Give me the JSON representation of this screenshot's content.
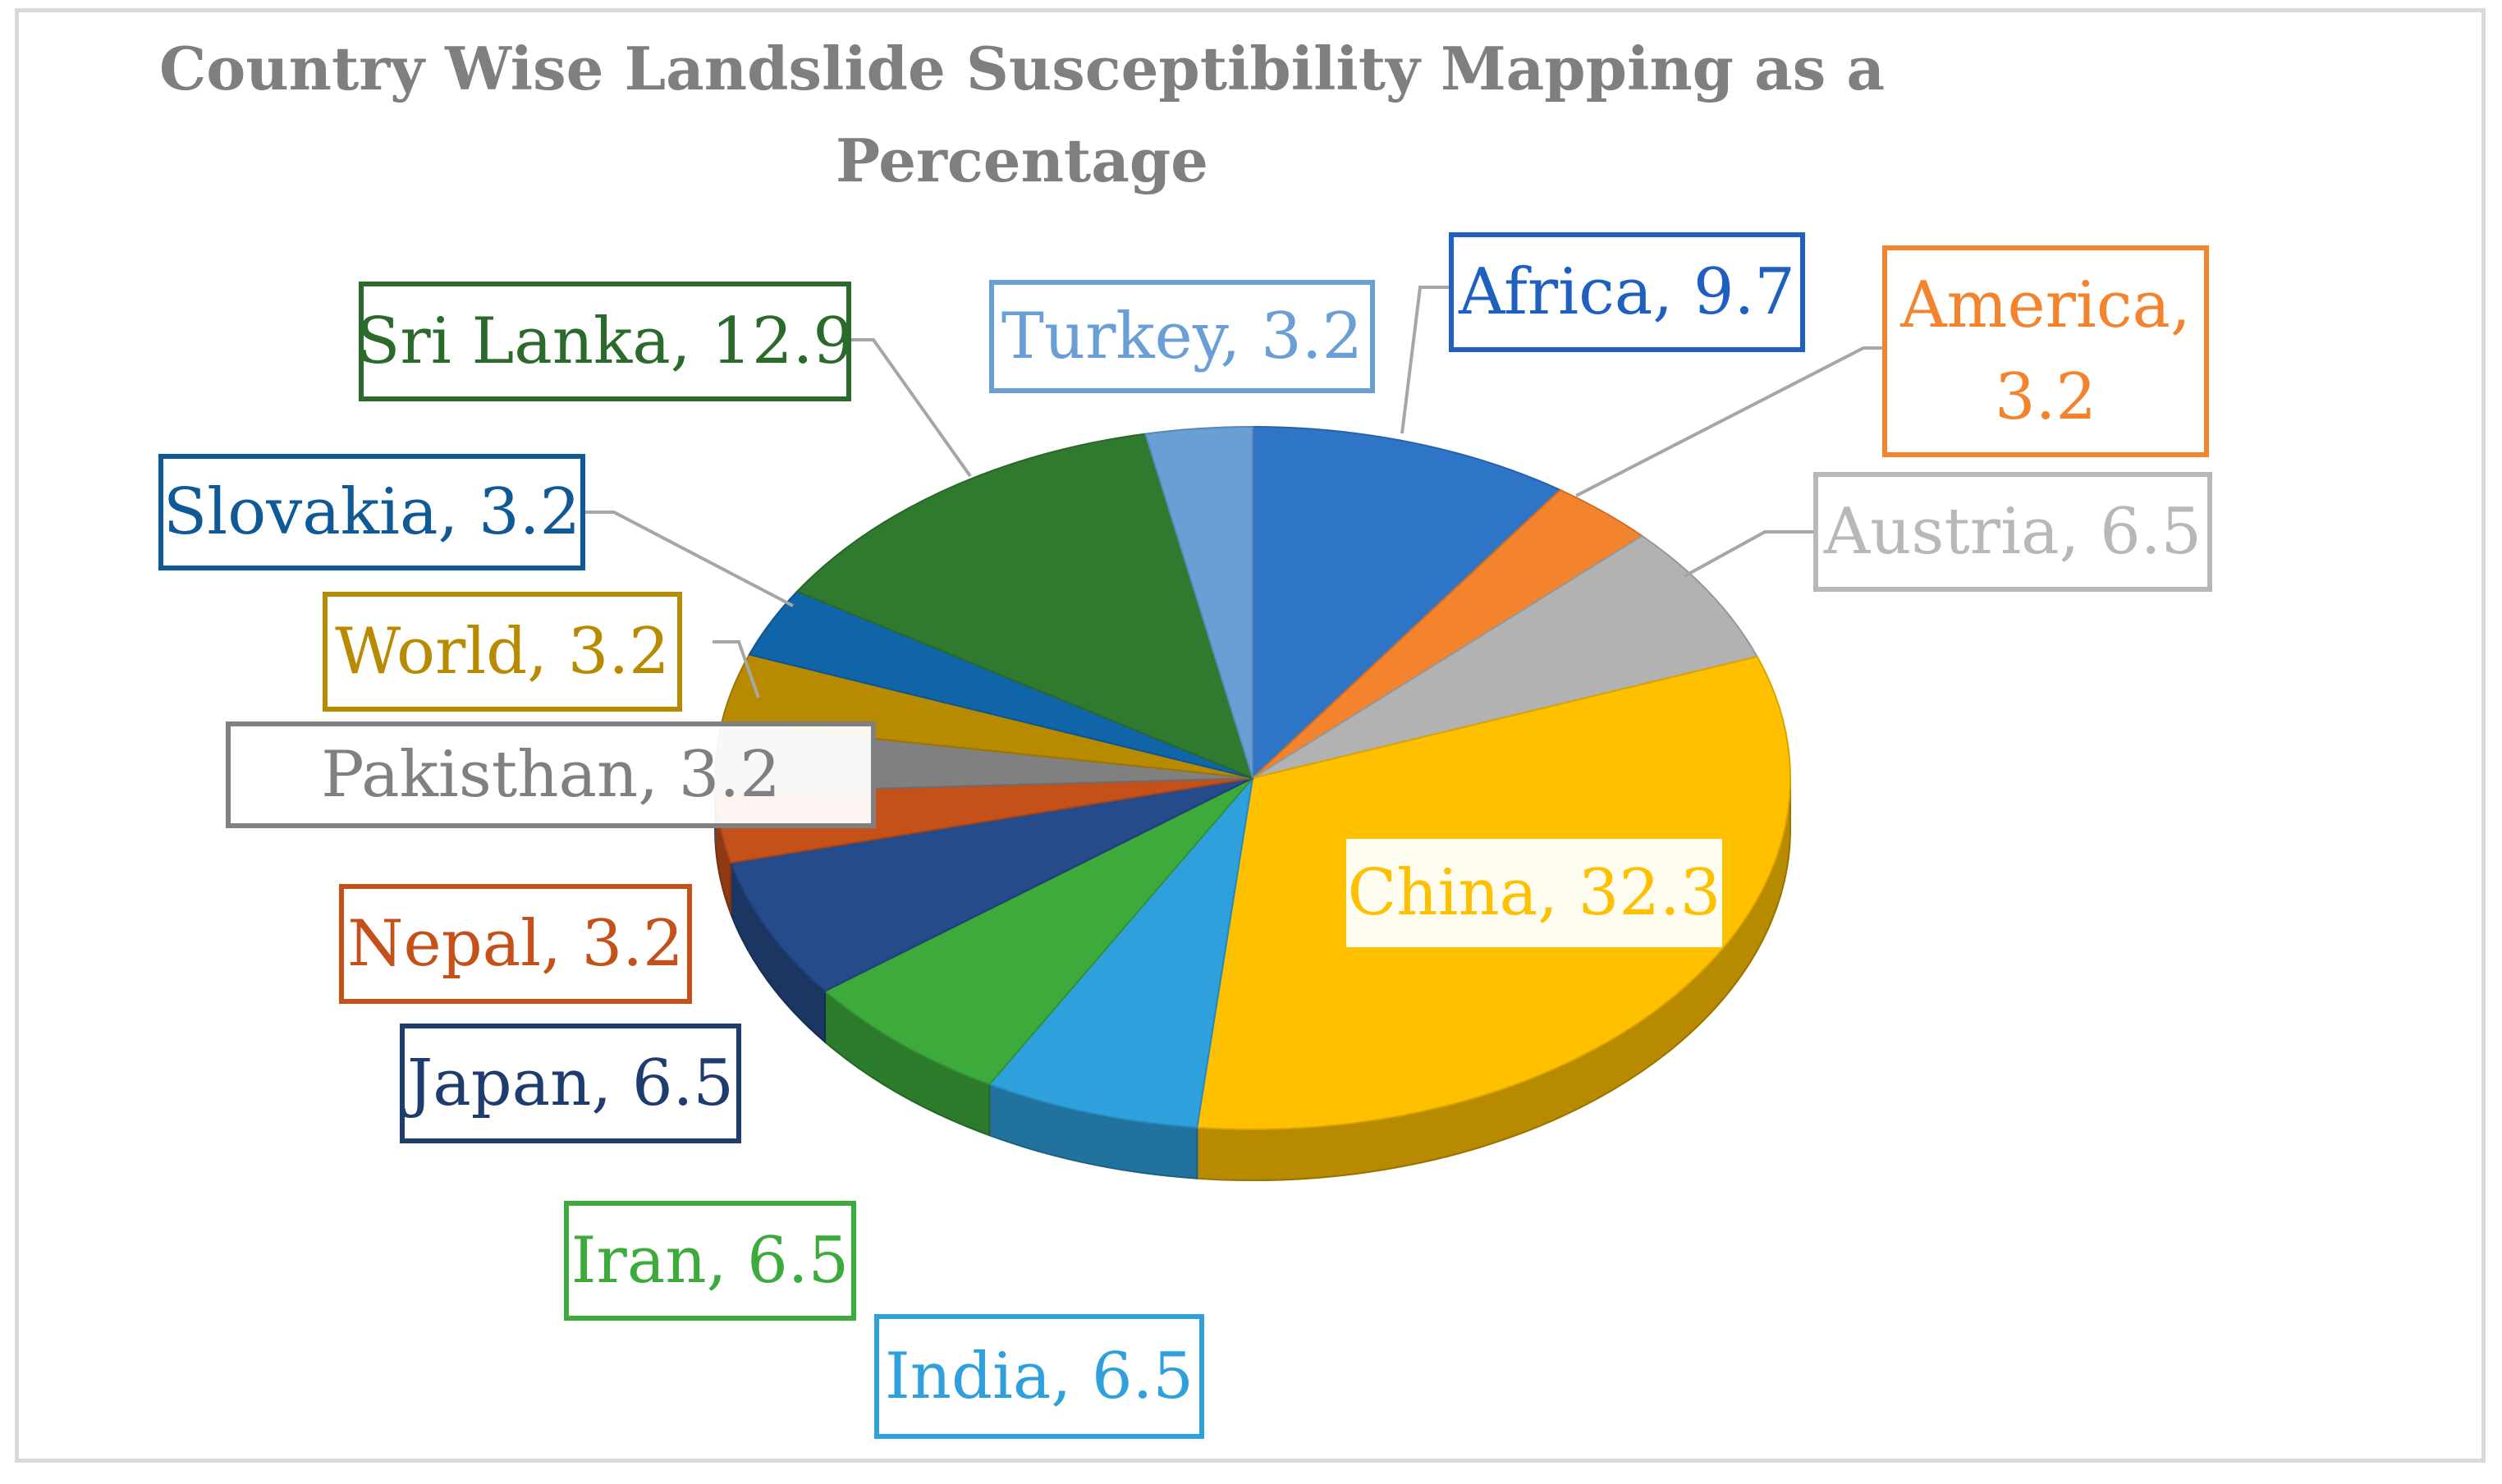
{
  "chart_data": {
    "type": "pie",
    "title": "Country Wise Landslide Susceptibility Mapping as a Percentage",
    "legend": "none",
    "data_labels": "category, value",
    "series": [
      {
        "slices": [
          {
            "label": "Africa",
            "value": 9.7,
            "color": "#2e75c8",
            "label_color": "#1f5fbf",
            "label_lines": [
              "Africa, 9.7"
            ]
          },
          {
            "label": "America",
            "value": 3.2,
            "color": "#f4832d",
            "label_color": "#f4832d",
            "label_lines": [
              "America,",
              "3.2"
            ]
          },
          {
            "label": "Austria",
            "value": 6.5,
            "color": "#b2b2b2",
            "label_color": "#b8b8b8",
            "label_lines": [
              "Austria, 6.5"
            ]
          },
          {
            "label": "China",
            "value": 32.3,
            "color": "#ffc000",
            "label_color": "#ffc000",
            "label_lines": [
              "China, 32.3"
            ]
          },
          {
            "label": "India",
            "value": 6.5,
            "color": "#2ea0dc",
            "label_color": "#2ea0dc",
            "label_lines": [
              "India, 6.5"
            ]
          },
          {
            "label": "Iran",
            "value": 6.5,
            "color": "#3cab3c",
            "label_color": "#3cab3c",
            "label_lines": [
              "Iran, 6.5"
            ]
          },
          {
            "label": "Japan",
            "value": 6.5,
            "color": "#264b8a",
            "label_color": "#1f3c6e",
            "label_lines": [
              "Japan, 6.5"
            ]
          },
          {
            "label": "Nepal",
            "value": 3.2,
            "color": "#c5511a",
            "label_color": "#c5511a",
            "label_lines": [
              "Nepal, 3.2"
            ]
          },
          {
            "label": "Pakisthan",
            "value": 3.2,
            "color": "#808080",
            "label_color": "#808080",
            "label_lines": [
              "Pakisthan, 3.2"
            ]
          },
          {
            "label": "World",
            "value": 3.2,
            "color": "#b88a00",
            "label_color": "#b88a00",
            "label_lines": [
              "World, 3.2"
            ]
          },
          {
            "label": "Slovakia",
            "value": 3.2,
            "color": "#0f65a8",
            "label_color": "#0f5a96",
            "label_lines": [
              "Slovakia, 3.2"
            ]
          },
          {
            "label": "Sri Lanka",
            "value": 12.9,
            "color": "#2f7a2f",
            "label_color": "#2a6a2a",
            "label_lines": [
              "Sri Lanka, 12.9"
            ]
          },
          {
            "label": "Turkey",
            "value": 3.2,
            "color": "#6a9fd6",
            "label_color": "#6a9fd6",
            "label_lines": [
              "Turkey, 3.2"
            ]
          }
        ]
      }
    ]
  }
}
